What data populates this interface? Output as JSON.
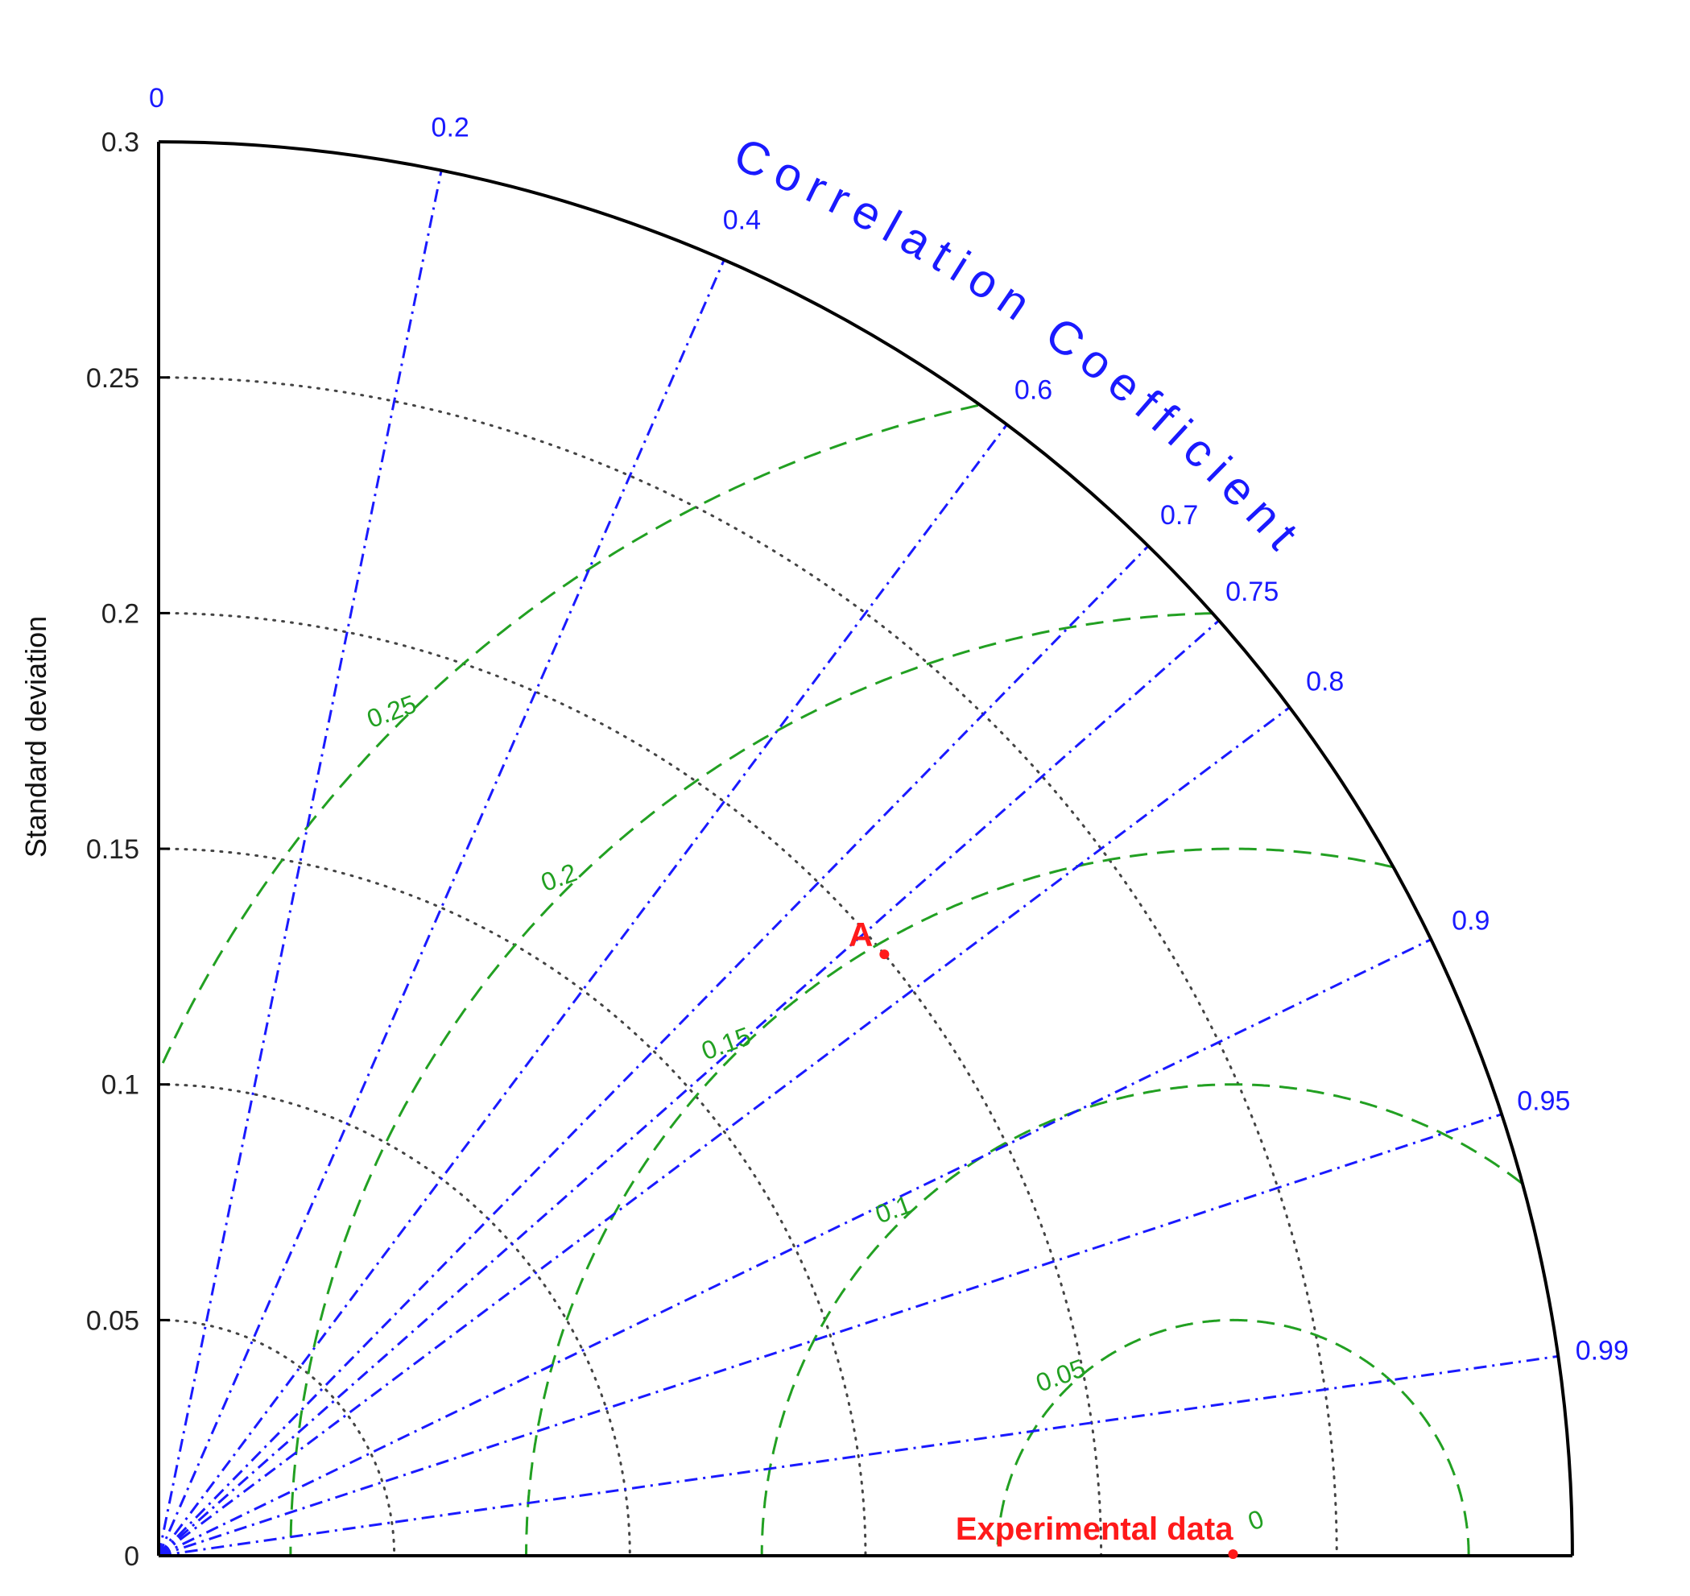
{
  "chart_data": {
    "type": "taylor-diagram",
    "ylabel": "Standard deviation",
    "arc_title": "Correlation Coefficient",
    "std_ticks": [
      0,
      0.05,
      0.1,
      0.15,
      0.2,
      0.25,
      0.3
    ],
    "std_ticks_labels": [
      "0",
      "0.05",
      "0.1",
      "0.15",
      "0.2",
      "0.25",
      "0.3"
    ],
    "std_max": 0.3,
    "correlation_ticks": [
      0,
      0.2,
      0.4,
      0.6,
      0.7,
      0.75,
      0.8,
      0.9,
      0.95,
      0.99
    ],
    "correlation_labels": [
      "0",
      "0.2",
      "0.4",
      "0.6",
      "0.7",
      "0.75",
      "0.8",
      "0.9",
      "0.95",
      "0.99"
    ],
    "rms_ticks": [
      0.05,
      0.1,
      0.15,
      0.2,
      0.25
    ],
    "rms_labels": [
      "0.05",
      "0.1",
      "0.15",
      "0.2",
      "0.25"
    ],
    "rms_zero_label": "0",
    "reference": {
      "name": "Experimental data",
      "std": 0.228
    },
    "points": [
      {
        "label": "A",
        "std": 0.2,
        "correlation": 0.77
      }
    ],
    "colors": {
      "axis": "#000000",
      "correlation": "#1a1aff",
      "rms": "#22a022",
      "std_arcs": "#444444",
      "points": "#ff1a1a"
    }
  }
}
